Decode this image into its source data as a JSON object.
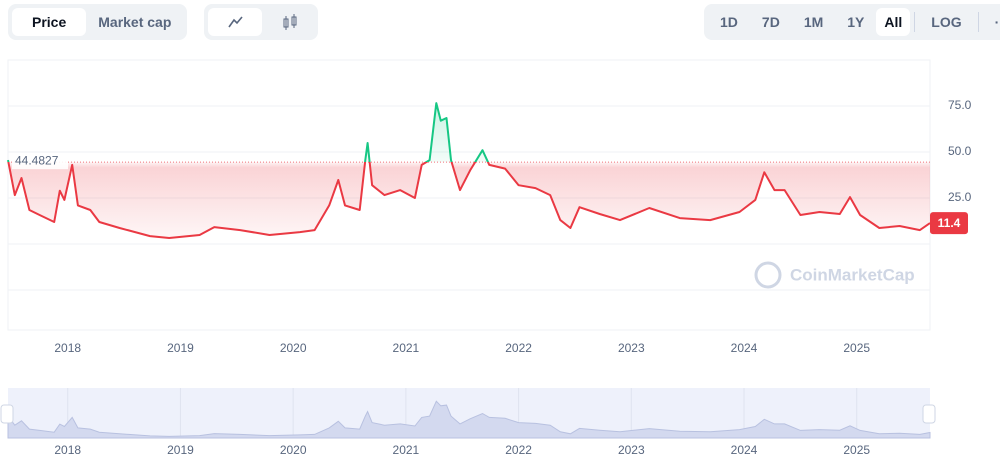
{
  "controls": {
    "tabs": [
      "Price",
      "Market cap"
    ],
    "ranges": [
      "1D",
      "7D",
      "1M",
      "1Y",
      "All"
    ],
    "scale": "LOG",
    "more": "···"
  },
  "brand": "CoinMarketCap",
  "chart_data": {
    "type": "line",
    "x": [
      2017.47,
      2017.53,
      2017.59,
      2017.66,
      2017.75,
      2017.88,
      2017.93,
      2017.97,
      2018.04,
      2018.09,
      2018.2,
      2018.28,
      2018.46,
      2018.73,
      2018.9,
      2019.17,
      2019.3,
      2019.53,
      2019.79,
      2020.06,
      2020.19,
      2020.32,
      2020.4,
      2020.46,
      2020.59,
      2020.64,
      2020.66,
      2020.7,
      2020.81,
      2020.95,
      2021.08,
      2021.14,
      2021.21,
      2021.27,
      2021.31,
      2021.36,
      2021.4,
      2021.48,
      2021.57,
      2021.68,
      2021.74,
      2021.88,
      2022.0,
      2022.15,
      2022.28,
      2022.37,
      2022.46,
      2022.54,
      2022.72,
      2022.9,
      2023.16,
      2023.43,
      2023.7,
      2023.96,
      2024.1,
      2024.18,
      2024.27,
      2024.36,
      2024.5,
      2024.67,
      2024.85,
      2024.94,
      2025.03,
      2025.2,
      2025.38,
      2025.56,
      2025.65
    ],
    "series": [
      {
        "name": "Price",
        "color": "#ea3943",
        "color_above": "#16c784",
        "values": [
          45.6,
          26.6,
          35.9,
          18.5,
          15.8,
          12,
          29,
          24,
          43,
          21,
          18.5,
          12,
          8.7,
          4.3,
          3.3,
          4.9,
          9.2,
          7.6,
          4.9,
          6.5,
          7.6,
          21,
          34.8,
          21,
          18.5,
          45.6,
          54.9,
          32,
          26.6,
          29.3,
          25,
          43,
          45.6,
          76.6,
          67,
          68.5,
          45.6,
          29.3,
          40,
          51,
          43,
          41,
          32,
          30.4,
          26.6,
          13,
          8.7,
          20,
          16.3,
          13,
          19.6,
          14.1,
          13,
          17.4,
          24,
          39,
          29.3,
          29.3,
          15.8,
          17.4,
          16.3,
          25.5,
          15.8,
          8.7,
          9.8,
          7.6,
          11.4
        ]
      }
    ],
    "reference": {
      "value": 44.4827,
      "label": "44.4827"
    },
    "last_price": 11.4,
    "xlim": [
      2017.47,
      2025.65
    ],
    "xticks": [
      2018,
      2019,
      2020,
      2021,
      2022,
      2023,
      2024,
      2025
    ],
    "ylim": [
      -46.7,
      100
    ],
    "yticks": [
      {
        "value": 25,
        "label": "25.0"
      },
      {
        "value": 50,
        "label": "50.0"
      },
      {
        "value": 75,
        "label": "75.0"
      }
    ],
    "grid": true
  }
}
